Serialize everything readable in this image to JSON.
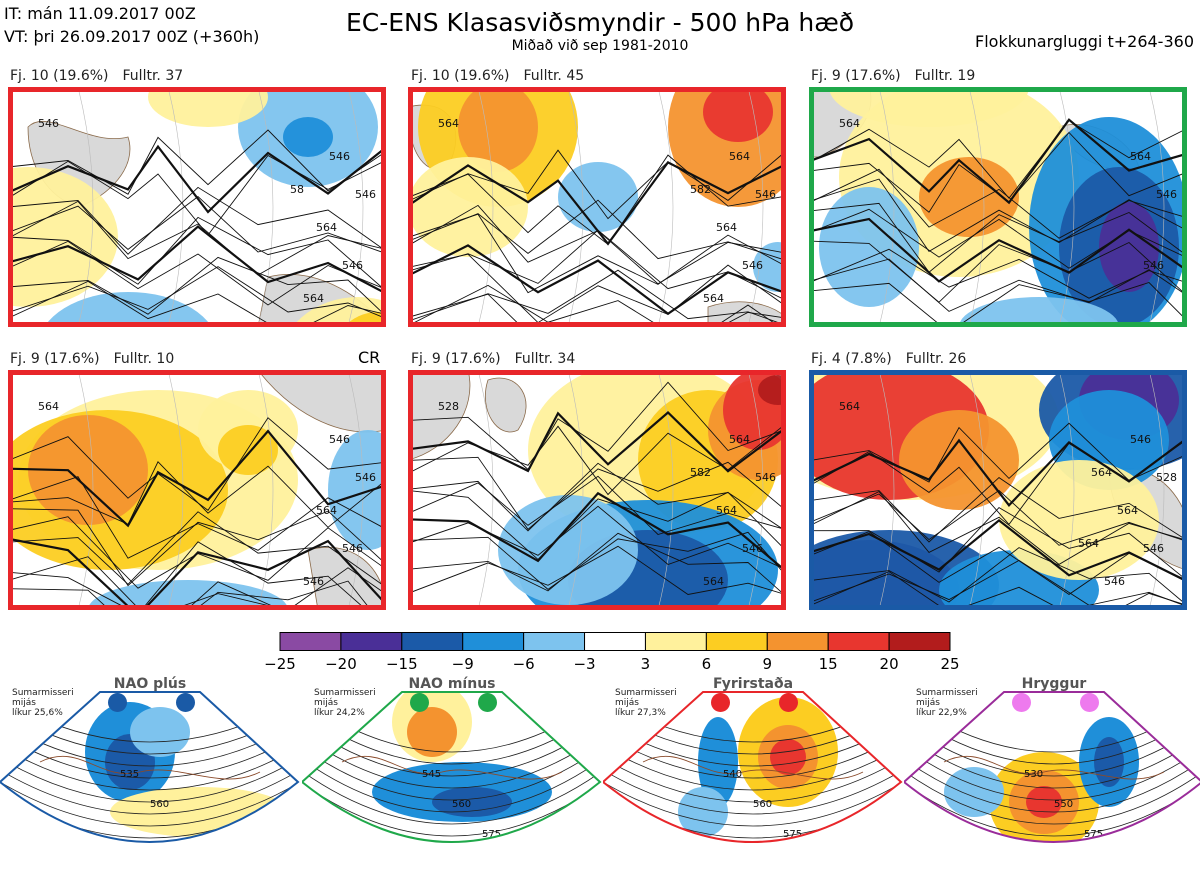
{
  "header": {
    "it": "IT: mán 11.09.2017 00Z",
    "vt": "VT: þri 26.09.2017 00Z  (+360h)",
    "title": "EC-ENS Klasasviðsmyndir - 500 hPa hæð",
    "subtitle": "Miðað við sep 1981-2010",
    "window": "Flokkunargluggi t+264-360"
  },
  "panels": [
    {
      "fj": "Fj. 10 (19.6%)",
      "fulltr": "Fulltr. 37",
      "frame_color": "#e8262a",
      "contour_labels": [
        "546",
        "546",
        "546",
        "546",
        "564",
        "564",
        "58"
      ]
    },
    {
      "fj": "Fj. 10 (19.6%)",
      "fulltr": "Fulltr. 45",
      "frame_color": "#e8262a",
      "contour_labels": [
        "564",
        "546",
        "546",
        "564",
        "564",
        "564",
        "582"
      ]
    },
    {
      "fj": "Fj. 9 (17.6%)",
      "fulltr": "Fulltr. 19",
      "frame_color": "#1fa84a",
      "contour_labels": [
        "564",
        "546",
        "546",
        "564"
      ]
    },
    {
      "fj": "Fj. 9 (17.6%)",
      "fulltr": "Fulltr. 10",
      "frame_color": "#e8262a",
      "contour_labels": [
        "564",
        "546",
        "546",
        "546",
        "564",
        "546"
      ],
      "tag": "CR"
    },
    {
      "fj": "Fj. 9 (17.6%)",
      "fulltr": "Fulltr. 34",
      "frame_color": "#e8262a",
      "contour_labels": [
        "528",
        "546",
        "546",
        "564",
        "564",
        "564",
        "582"
      ]
    },
    {
      "fj": "Fj. 4 (7.8%)",
      "fulltr": "Fulltr. 26",
      "frame_color": "#1a5aa6",
      "contour_labels": [
        "564",
        "528",
        "546",
        "546",
        "564",
        "546",
        "564",
        "564"
      ]
    }
  ],
  "chart_data": {
    "type": "heatmap",
    "title": "EC-ENS Klasasviðsmyndir - 500 hPa hæð",
    "colorbar": {
      "ticks": [
        "−25",
        "−20",
        "−15",
        "−9",
        "−6",
        "−3",
        "3",
        "6",
        "9",
        "15",
        "20",
        "25"
      ],
      "colors": [
        "#8a4aa3",
        "#4a2f97",
        "#1b5aa8",
        "#1f8fd9",
        "#7dc3ee",
        "#ffffff",
        "#fff19c",
        "#fccd22",
        "#f4932f",
        "#e8362f",
        "#b21c1c"
      ]
    },
    "regimes": [
      {
        "name": "NAO plús",
        "note": "Sumarmisseri\nmijás\nlíkur 25,6%",
        "color": "#1a5aa6",
        "contours": [
          "535",
          "560"
        ]
      },
      {
        "name": "NAO mínus",
        "note": "Sumarmisseri\nmijás\nlíkur 24,2%",
        "color": "#1fa84a",
        "contours": [
          "545",
          "560",
          "575"
        ]
      },
      {
        "name": "Fyrirstaða",
        "note": "Sumarmisseri\nmijás\nlíkur 27,3%",
        "color": "#e8262a",
        "contours": [
          "540",
          "560",
          "575"
        ]
      },
      {
        "name": "Hryggur",
        "note": "Sumarmisseri\nmijás\nlíkur 22,9%",
        "color": "#9a2c9a",
        "contours": [
          "530",
          "550",
          "575"
        ]
      }
    ]
  }
}
